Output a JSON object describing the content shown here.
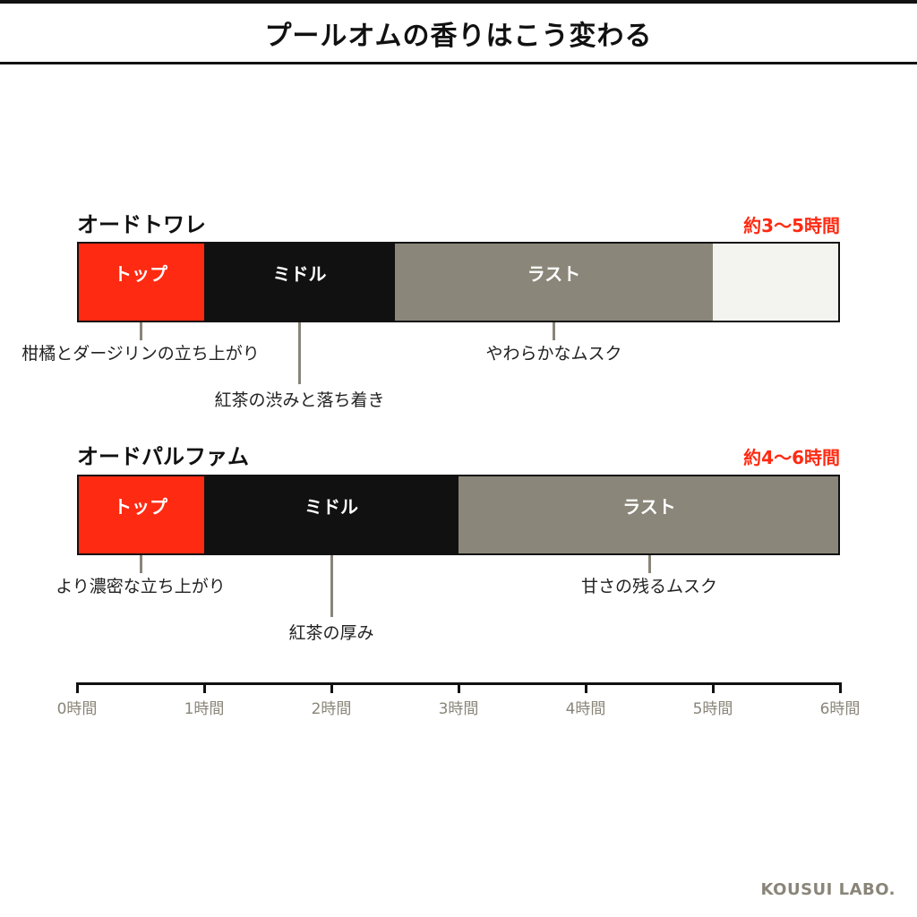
{
  "title": "プールオムの香りはこう変わる",
  "brand": "KOUSUI LABO.",
  "colors": {
    "top": "#ff2a12",
    "middle": "#111111",
    "last": "#8a8679",
    "empty": "#f3f3ef",
    "accent": "#ff2a12",
    "axis_text": "#8a8579"
  },
  "chart_data": {
    "type": "bar",
    "orientation": "horizontal-stacked-timeline",
    "xlim": [
      0,
      6
    ],
    "x_ticks": [
      "0時間",
      "1時間",
      "2時間",
      "3時間",
      "4時間",
      "5時間",
      "6時間"
    ],
    "series": [
      {
        "name": "オードトワレ",
        "duration_label": "約3〜5時間",
        "segments": [
          {
            "label": "トップ",
            "start": 0,
            "end": 1,
            "color": "#ff2a12"
          },
          {
            "label": "ミドル",
            "start": 1,
            "end": 2.5,
            "color": "#111111"
          },
          {
            "label": "ラスト",
            "start": 2.5,
            "end": 5,
            "color": "#8a8679"
          },
          {
            "label": "",
            "start": 5,
            "end": 6,
            "color": "#f3f3ef"
          }
        ],
        "notes": [
          {
            "text": "柑橘とダージリンの立ち上がり",
            "at": 0.5,
            "row": 1
          },
          {
            "text": "紅茶の渋みと落ち着き",
            "at": 1.75,
            "row": 2
          },
          {
            "text": "やわらかなムスク",
            "at": 3.75,
            "row": 1
          }
        ]
      },
      {
        "name": "オードパルファム",
        "duration_label": "約4〜6時間",
        "segments": [
          {
            "label": "トップ",
            "start": 0,
            "end": 1,
            "color": "#ff2a12"
          },
          {
            "label": "ミドル",
            "start": 1,
            "end": 3,
            "color": "#111111"
          },
          {
            "label": "ラスト",
            "start": 3,
            "end": 6,
            "color": "#8a8679"
          }
        ],
        "notes": [
          {
            "text": "より濃密な立ち上がり",
            "at": 0.5,
            "row": 1
          },
          {
            "text": "紅茶の厚み",
            "at": 2,
            "row": 2
          },
          {
            "text": "甘さの残るムスク",
            "at": 4.5,
            "row": 1
          }
        ]
      }
    ]
  }
}
